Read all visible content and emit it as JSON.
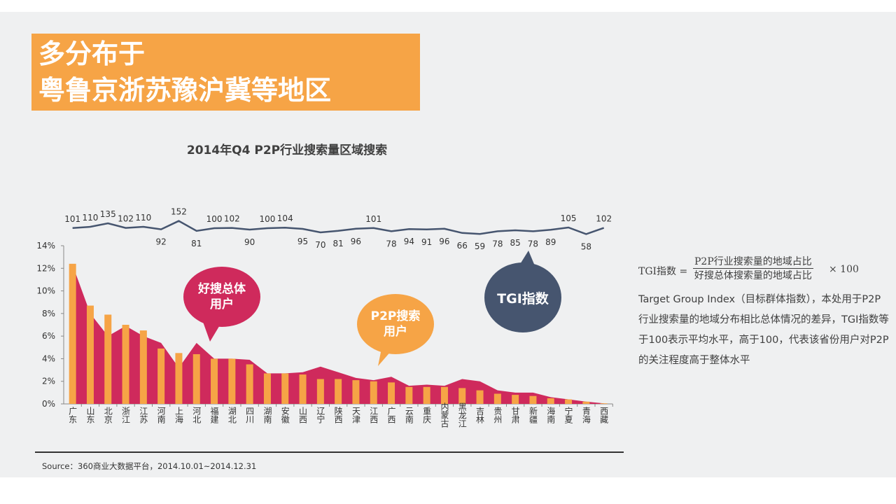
{
  "title": {
    "line1": "多分布于",
    "line2": "粤鲁京浙苏豫沪冀等地区"
  },
  "colors": {
    "title_bg": "#f6a446",
    "red": "#cf2a5c",
    "orange": "#f6a446",
    "navy": "#46556f",
    "line": "#46556f",
    "background": "#eff0f1"
  },
  "legend": {
    "red_label": "好搜总体\n用户",
    "orange_label": "P2P搜索\n用户",
    "tgi_label": "TGI指数"
  },
  "formula": {
    "lhs": "TGI指数 =",
    "numerator": "P2P行业搜索量的地域占比",
    "denominator": "好搜总体搜索量的地域占比",
    "rhs": "× 100"
  },
  "description": "Target Group Index（目标群体指数），本处用于P2P行业搜索量的地域分布相比总体情况的差异，TGI指数等于100表示平均水平，高于100，代表该省份用户对P2P的关注程度高于整体水平",
  "source": "Source：360商业大数据平台，2014.10.01~2014.12.31",
  "chart_data": {
    "type": "bar",
    "title": "2014年Q4 P2P行业搜索量区域搜索",
    "categories": [
      "广东",
      "山东",
      "北京",
      "浙江",
      "江苏",
      "河南",
      "上海",
      "河北",
      "福建",
      "湖北",
      "四川",
      "湖南",
      "安徽",
      "山西",
      "辽宁",
      "陕西",
      "天津",
      "江西",
      "广西",
      "云南",
      "重庆",
      "内蒙古",
      "黑龙江",
      "吉林",
      "贵州",
      "甘肃",
      "新疆",
      "海南",
      "宁夏",
      "青海",
      "西藏"
    ],
    "series": [
      {
        "name": "好搜总体用户",
        "type": "area",
        "color": "#cf2a5c",
        "values": [
          12.3,
          8.0,
          6.0,
          6.9,
          6.0,
          5.4,
          3.2,
          5.4,
          4.0,
          4.0,
          3.9,
          2.7,
          2.7,
          2.8,
          3.3,
          2.8,
          2.3,
          2.1,
          2.4,
          1.6,
          1.7,
          1.6,
          2.2,
          2.0,
          1.2,
          1.0,
          1.0,
          0.6,
          0.4,
          0.2,
          0.05
        ]
      },
      {
        "name": "P2P搜索用户",
        "type": "bar",
        "color": "#f6a446",
        "values": [
          12.4,
          8.7,
          7.9,
          7.0,
          6.5,
          4.9,
          4.5,
          4.4,
          4.0,
          4.0,
          3.5,
          2.7,
          2.7,
          2.6,
          2.2,
          2.2,
          2.1,
          2.0,
          1.9,
          1.5,
          1.5,
          1.5,
          1.4,
          1.2,
          0.9,
          0.8,
          0.7,
          0.5,
          0.4,
          0.2,
          0.05
        ]
      },
      {
        "name": "TGI指数",
        "type": "line",
        "color": "#46556f",
        "values": [
          101,
          110,
          135,
          102,
          110,
          92,
          152,
          81,
          100,
          102,
          90,
          100,
          104,
          95,
          70,
          81,
          96,
          101,
          78,
          94,
          91,
          96,
          66,
          59,
          78,
          85,
          78,
          89,
          105,
          58,
          102
        ]
      }
    ],
    "tgi_label_positions": [
      "above",
      "above",
      "above",
      "above",
      "above",
      "below",
      "above",
      "below",
      "above",
      "above",
      "below",
      "above",
      "above",
      "below",
      "below",
      "below",
      "below",
      "above",
      "below",
      "below",
      "below",
      "below",
      "below",
      "below",
      "below",
      "below",
      "below",
      "below",
      "above",
      "below",
      "above"
    ],
    "y_ticks": [
      "0%",
      "2%",
      "4%",
      "6%",
      "8%",
      "10%",
      "12%",
      "14%"
    ],
    "ylim": [
      0,
      14
    ],
    "y_unit": "%"
  }
}
